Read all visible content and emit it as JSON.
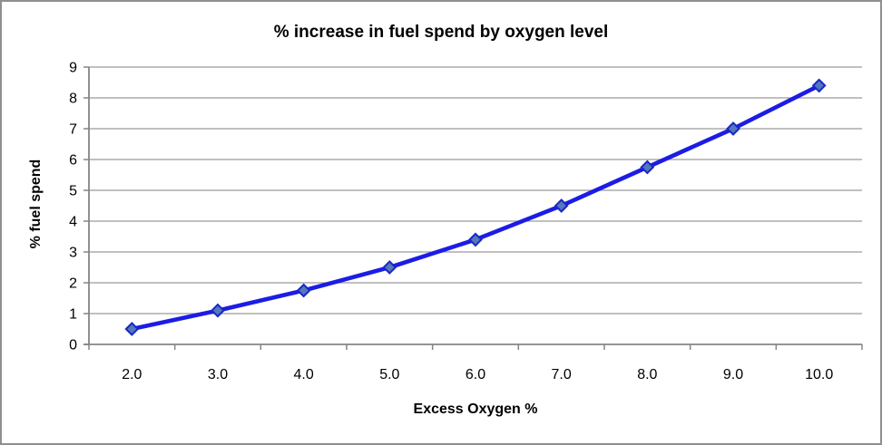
{
  "frame": {
    "background": "#ffffff",
    "border_color": "#8f8f8f"
  },
  "chart_data": {
    "type": "line",
    "title": "% increase in fuel spend by oxygen level",
    "xlabel": "Excess Oxygen %",
    "ylabel": "% fuel spend",
    "categories": [
      "2.0",
      "3.0",
      "4.0",
      "5.0",
      "6.0",
      "7.0",
      "8.0",
      "9.0",
      "10.0"
    ],
    "series": [
      {
        "name": "% fuel spend",
        "values": [
          0.5,
          1.1,
          1.75,
          2.5,
          3.4,
          4.5,
          5.75,
          7.0,
          8.4
        ]
      }
    ],
    "ylim": [
      0,
      9
    ],
    "ytick_step": 1,
    "yticks": [
      "0",
      "1",
      "2",
      "3",
      "4",
      "5",
      "6",
      "7",
      "8",
      "9"
    ],
    "grid": "horizontal",
    "legend": "none",
    "marker": "diamond",
    "colors": {
      "line": "#1c1ce6",
      "marker_fill": "#5577bb",
      "marker_stroke": "#1828c8",
      "gridline": "#9a9a9a",
      "axis": "#858585",
      "text": "#000000"
    }
  }
}
